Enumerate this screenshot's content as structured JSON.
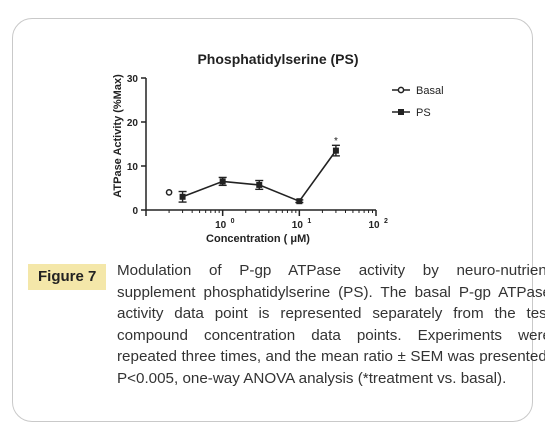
{
  "chart_data": {
    "type": "scatter",
    "title": "Phosphatidylserine (PS)",
    "xlabel": "Concentration ( μM)",
    "ylabel": "ATPase Activity (%Max)",
    "xscale": "log",
    "xlim": [
      0.1,
      100
    ],
    "ylim": [
      0,
      30
    ],
    "yticks": [
      "0",
      "10",
      "20",
      "30"
    ],
    "xtick_bases": [
      "10",
      "10",
      "10"
    ],
    "xtick_exponents": [
      "0",
      "1",
      "2"
    ],
    "legend_position": "top-right",
    "series": [
      {
        "name": "Basal",
        "marker": "circle-open",
        "points": [
          {
            "x": 0.2,
            "y": 4.0,
            "sem": 0
          }
        ]
      },
      {
        "name": "PS",
        "marker": "square-filled",
        "line": true,
        "points": [
          {
            "x": 0.3,
            "y": 3.0,
            "sem": 1.2
          },
          {
            "x": 1.0,
            "y": 6.5,
            "sem": 0.9
          },
          {
            "x": 3.0,
            "y": 5.7,
            "sem": 1.0
          },
          {
            "x": 10.0,
            "y": 2.0,
            "sem": 0.3
          },
          {
            "x": 30.0,
            "y": 13.5,
            "sem": 1.2
          }
        ]
      }
    ],
    "annotations": [
      {
        "text": "*",
        "x": 30.0,
        "y": 15.5
      }
    ]
  },
  "caption": {
    "label": "Figure 7",
    "text": "Modulation of P-gp ATPase activity by neuro-nutrient supplement phosphatidylserine (PS). The basal P-gp ATPase activity data point is represented separately from the test compound concentration data points. Experiments were repeated three times, and the mean ratio ± SEM was presented. P<0.005, one-way ANOVA analysis (*treatment vs. basal)."
  },
  "colors": {
    "label_bg": "#f4e7a9",
    "border": "#c9c9c9",
    "ink": "#222222"
  }
}
